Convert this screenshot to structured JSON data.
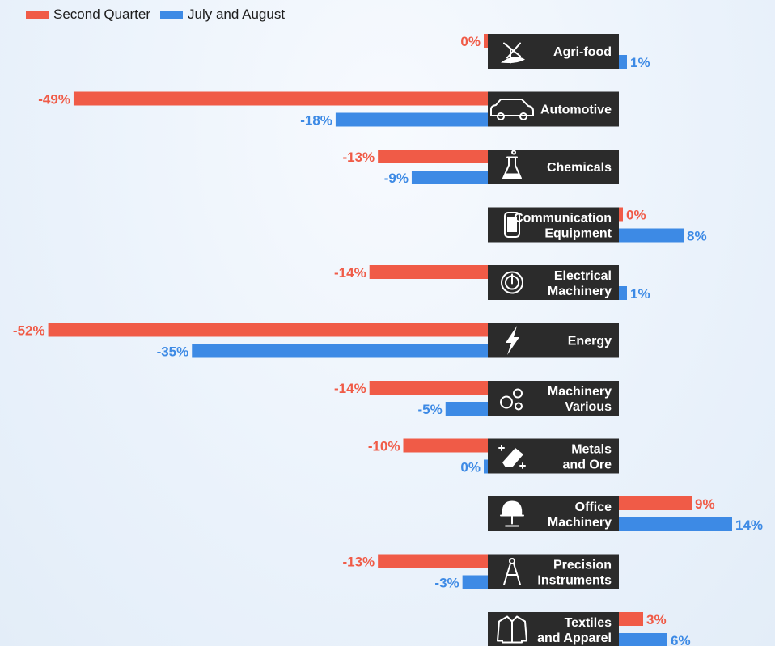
{
  "legend": {
    "series_1": "Second Quarter",
    "series_2": "July and August"
  },
  "colors": {
    "series_1": "#f05b47",
    "series_2": "#3d8ae5",
    "label_bg": "#2b2b2b"
  },
  "chart_data": {
    "type": "bar",
    "orientation": "horizontal",
    "categories": [
      [
        "Agri-food"
      ],
      [
        "Automotive"
      ],
      [
        "Chemicals"
      ],
      [
        "Communication",
        "Equipment"
      ],
      [
        "Electrical",
        "Machinery"
      ],
      [
        "Energy"
      ],
      [
        "Machinery",
        "Various"
      ],
      [
        "Metals",
        "and Ore"
      ],
      [
        "Office",
        "Machinery"
      ],
      [
        "Precision",
        "Instruments"
      ],
      [
        "Textiles",
        "and Apparel"
      ]
    ],
    "icons": [
      "windmill-icon",
      "car-icon",
      "flask-icon",
      "phone-icon",
      "power-gear-icon",
      "lightning-icon",
      "gears-icon",
      "eraser-icon",
      "chair-icon",
      "compass-icon",
      "jacket-icon"
    ],
    "series": [
      {
        "name": "Second Quarter",
        "values": [
          0,
          -49,
          -13,
          0,
          -14,
          -52,
          -14,
          -10,
          9,
          -13,
          3
        ],
        "labels": [
          "0%",
          "-49%",
          "-13%",
          "0%",
          "-14%",
          "-52%",
          "-14%",
          "-10%",
          "9%",
          "-13%",
          "3%"
        ]
      },
      {
        "name": "July and August",
        "values": [
          1,
          -18,
          -9,
          8,
          1,
          -35,
          -5,
          0,
          14,
          -3,
          6
        ],
        "labels": [
          "1%",
          "-18%",
          "-9%",
          "8%",
          "1%",
          "-35%",
          "-5%",
          "0%",
          "14%",
          "-3%",
          "6%"
        ]
      }
    ],
    "grid": false,
    "legend_position": "top-left"
  }
}
